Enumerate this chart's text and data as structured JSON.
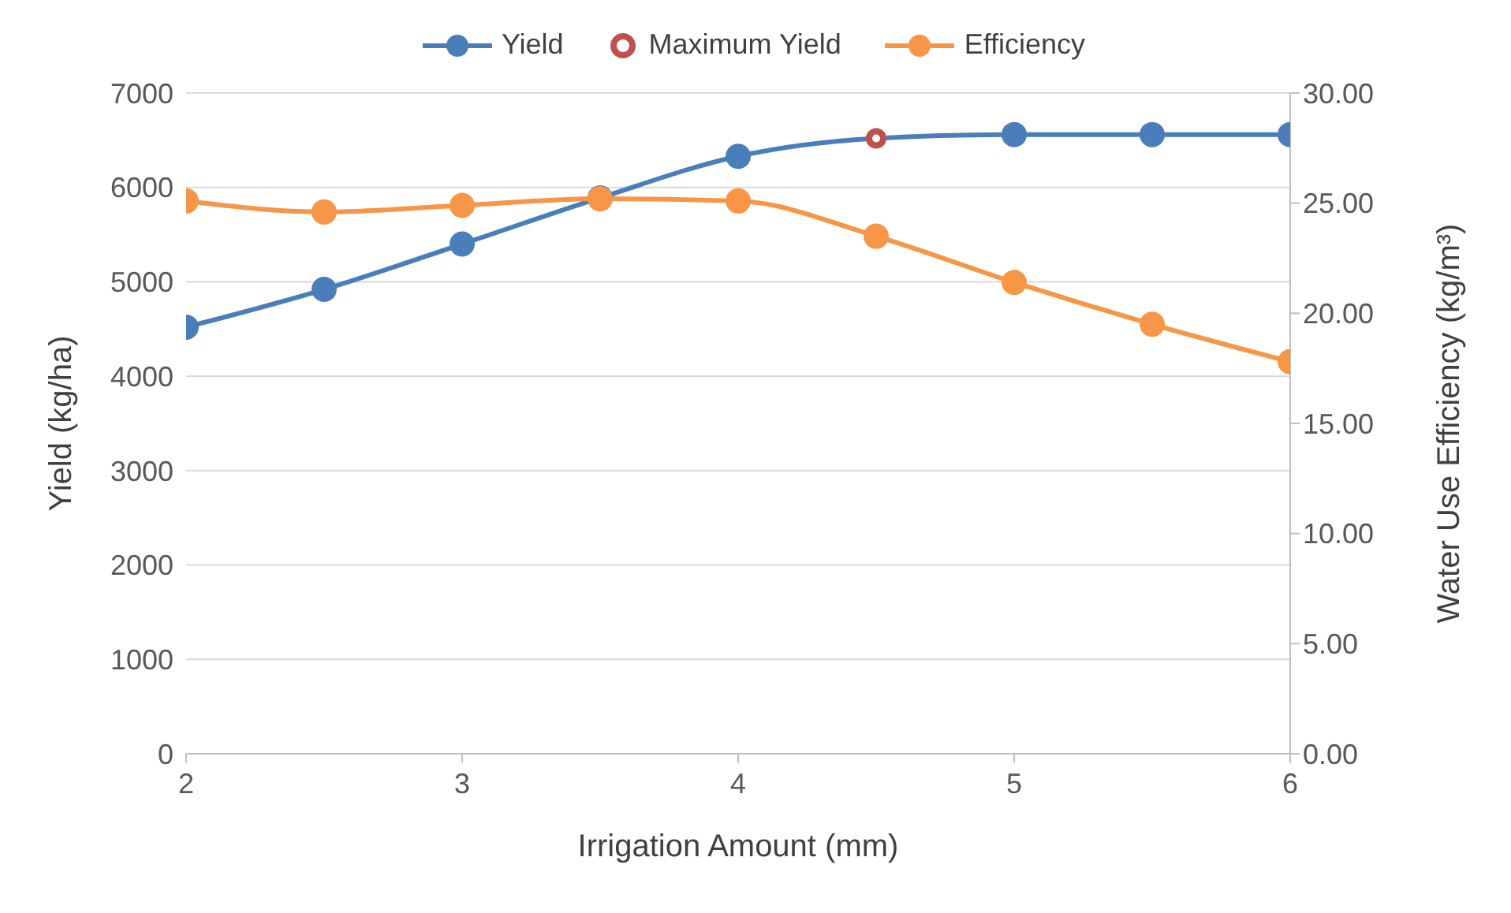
{
  "chart_data": {
    "type": "line",
    "xlabel": "Irrigation Amount (mm)",
    "ylabel": "Yield (kg/ha)",
    "y2label": "Water Use Efficiency (kg/m³)",
    "xlim": [
      2,
      6
    ],
    "xticks": [
      2,
      3,
      4,
      5,
      6
    ],
    "ylim": [
      0,
      7000
    ],
    "yticks": [
      0,
      1000,
      2000,
      3000,
      4000,
      5000,
      6000,
      7000
    ],
    "y2lim": [
      0,
      30
    ],
    "y2ticks": [
      {
        "value": 0,
        "label": "0.00"
      },
      {
        "value": 5,
        "label": "5.00"
      },
      {
        "value": 10,
        "label": "10.00"
      },
      {
        "value": 15,
        "label": "15.00"
      },
      {
        "value": 20,
        "label": "20.00"
      },
      {
        "value": 25,
        "label": "25.00"
      },
      {
        "value": 30,
        "label": "30.00"
      }
    ],
    "grid": "y",
    "legend": "top",
    "marker": "circle",
    "series": [
      {
        "name": "Yield",
        "color": "#4a7ebb",
        "x": [
          2,
          2.5,
          3,
          3.5,
          4,
          4.5,
          5,
          5.5,
          6
        ],
        "values": [
          4520,
          4920,
          5400,
          5890,
          6330,
          6520,
          6560,
          6560,
          6560
        ]
      },
      {
        "name": "Maximum Yield",
        "type": "scatter",
        "color": "#c0504d",
        "x": [
          4.5
        ],
        "values": [
          6520
        ]
      },
      {
        "name": "Efficiency",
        "axis": "y2",
        "color": "#f79646",
        "x": [
          2,
          2.5,
          3,
          3.5,
          4,
          4.5,
          5,
          5.5,
          6
        ],
        "values": [
          25.1,
          24.6,
          24.9,
          25.2,
          25.1,
          23.5,
          21.4,
          19.5,
          17.8
        ]
      }
    ]
  }
}
